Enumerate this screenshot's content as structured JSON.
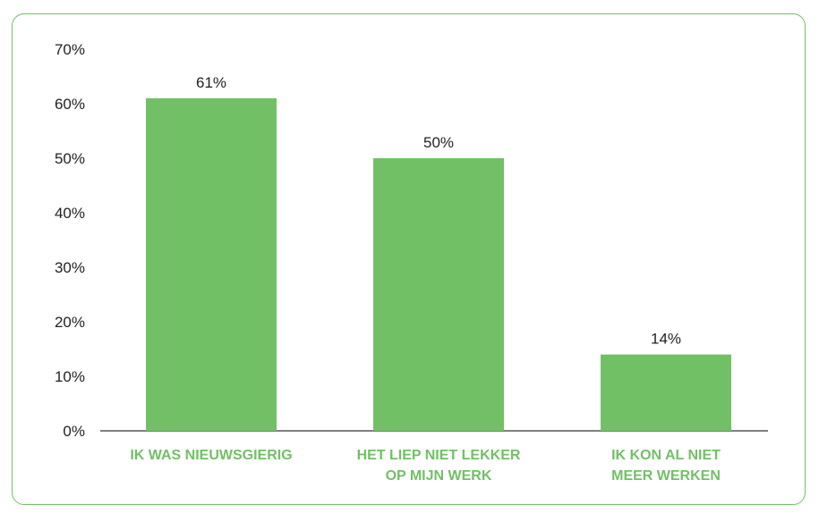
{
  "chart_data": {
    "type": "bar",
    "categories": [
      [
        "IK WAS NIEUWSGIERIG"
      ],
      [
        "HET LIEP NIET LEKKER",
        "OP MIJN WERK"
      ],
      [
        "IK KON AL NIET",
        "MEER WERKEN"
      ]
    ],
    "values": [
      61,
      50,
      14
    ],
    "data_labels": [
      "61%",
      "50%",
      "14%"
    ],
    "y_ticks": [
      "0%",
      "10%",
      "20%",
      "30%",
      "40%",
      "50%",
      "60%",
      "70%"
    ],
    "ylim": [
      0,
      70
    ],
    "grid": false,
    "bar_color": "#72c066",
    "category_label_color": "#72c066",
    "border_color": "#72c066"
  }
}
